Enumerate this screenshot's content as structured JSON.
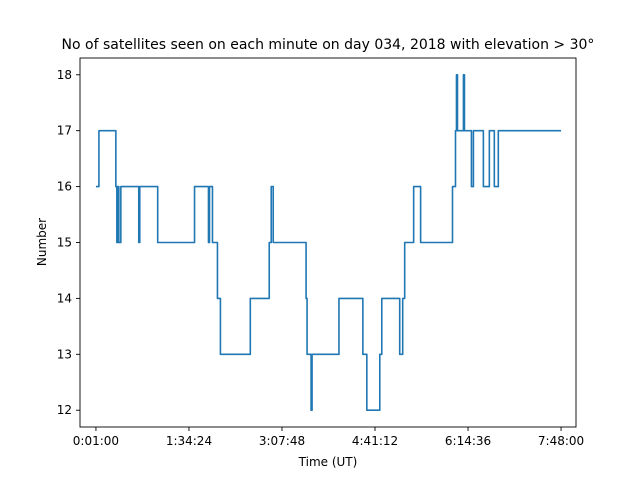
{
  "chart_data": {
    "type": "line",
    "title": "No of satellites seen on each minute on day 034, 2018 with elevation > 30°",
    "xlabel": "Time (UT)",
    "ylabel": "Number",
    "x_unit": "minutes (UT)",
    "xlim": [
      -15,
      483
    ],
    "ylim": [
      11.7,
      18.3
    ],
    "xticks": [
      {
        "value": 1,
        "label": "0:01:00"
      },
      {
        "value": 94.4,
        "label": "1:34:24"
      },
      {
        "value": 187.8,
        "label": "3:07:48"
      },
      {
        "value": 281.2,
        "label": "4:41:12"
      },
      {
        "value": 374.6,
        "label": "6:14:36"
      },
      {
        "value": 468,
        "label": "7:48:00"
      }
    ],
    "yticks": [
      12,
      13,
      14,
      15,
      16,
      17,
      18
    ],
    "grid": false,
    "color": "#1f77b4",
    "series": [
      {
        "points": [
          [
            1,
            16
          ],
          [
            4,
            16
          ],
          [
            4,
            17
          ],
          [
            21,
            17
          ],
          [
            21,
            16
          ],
          [
            22,
            16
          ],
          [
            22,
            15
          ],
          [
            23,
            15
          ],
          [
            23,
            16
          ],
          [
            24,
            16
          ],
          [
            24,
            15
          ],
          [
            26,
            15
          ],
          [
            26,
            16
          ],
          [
            44,
            16
          ],
          [
            44,
            15
          ],
          [
            45,
            15
          ],
          [
            45,
            16
          ],
          [
            63,
            16
          ],
          [
            63,
            15
          ],
          [
            100,
            15
          ],
          [
            100,
            16
          ],
          [
            114,
            16
          ],
          [
            114,
            15
          ],
          [
            115,
            15
          ],
          [
            115,
            16
          ],
          [
            118,
            16
          ],
          [
            118,
            15
          ],
          [
            123,
            15
          ],
          [
            123,
            14
          ],
          [
            126,
            14
          ],
          [
            126,
            13
          ],
          [
            156,
            13
          ],
          [
            156,
            14
          ],
          [
            175,
            14
          ],
          [
            175,
            15
          ],
          [
            177,
            15
          ],
          [
            177,
            16
          ],
          [
            179,
            16
          ],
          [
            179,
            15
          ],
          [
            212,
            15
          ],
          [
            212,
            14
          ],
          [
            213,
            14
          ],
          [
            213,
            13
          ],
          [
            217,
            13
          ],
          [
            217,
            12
          ],
          [
            218,
            12
          ],
          [
            218,
            13
          ],
          [
            245,
            13
          ],
          [
            245,
            14
          ],
          [
            269,
            14
          ],
          [
            269,
            13
          ],
          [
            273,
            13
          ],
          [
            273,
            12
          ],
          [
            286,
            12
          ],
          [
            286,
            13
          ],
          [
            288,
            13
          ],
          [
            288,
            14
          ],
          [
            306,
            14
          ],
          [
            306,
            13
          ],
          [
            309,
            13
          ],
          [
            309,
            14
          ],
          [
            311,
            14
          ],
          [
            311,
            15
          ],
          [
            320,
            15
          ],
          [
            320,
            16
          ],
          [
            327,
            16
          ],
          [
            327,
            15
          ],
          [
            359,
            15
          ],
          [
            359,
            16
          ],
          [
            362,
            16
          ],
          [
            362,
            17
          ],
          [
            363,
            17
          ],
          [
            363,
            18
          ],
          [
            364,
            18
          ],
          [
            364,
            17
          ],
          [
            370,
            17
          ],
          [
            370,
            18
          ],
          [
            371,
            18
          ],
          [
            371,
            17
          ],
          [
            378,
            17
          ],
          [
            378,
            16
          ],
          [
            380,
            16
          ],
          [
            380,
            17
          ],
          [
            390,
            17
          ],
          [
            390,
            16
          ],
          [
            396,
            16
          ],
          [
            396,
            17
          ],
          [
            401,
            17
          ],
          [
            401,
            16
          ],
          [
            405,
            16
          ],
          [
            405,
            17
          ],
          [
            468,
            17
          ]
        ]
      }
    ]
  }
}
